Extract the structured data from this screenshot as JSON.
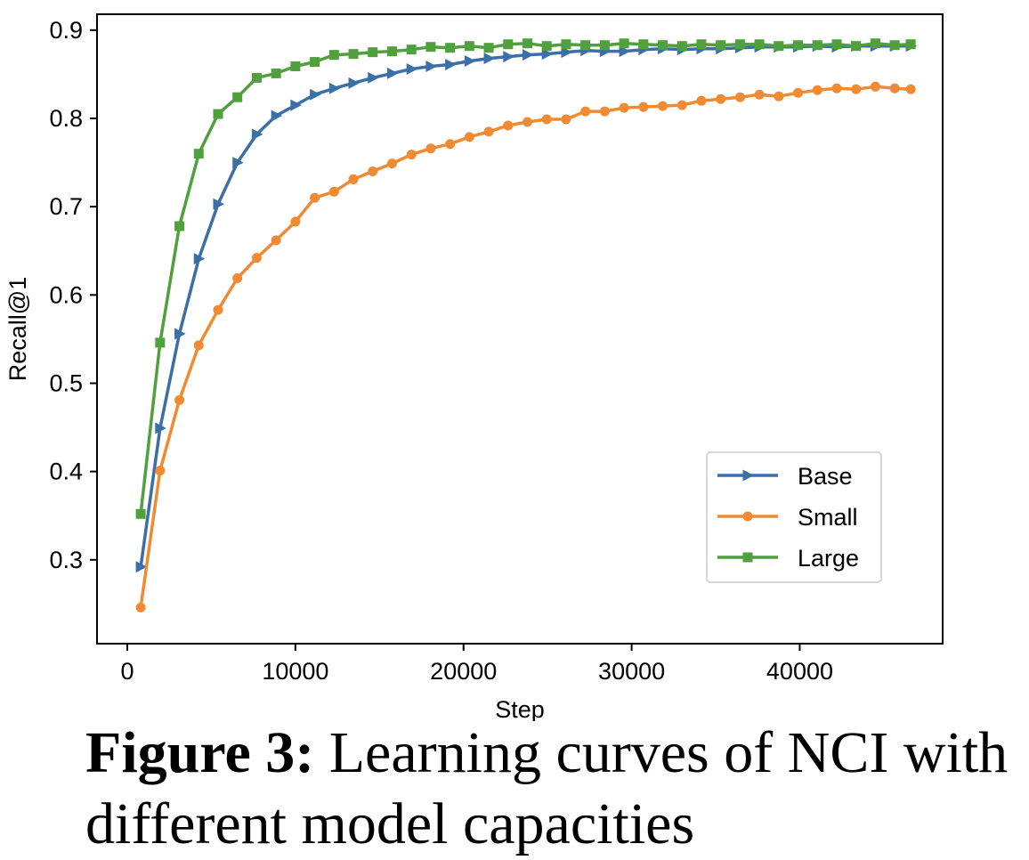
{
  "chart_data": {
    "type": "line",
    "xlabel": "Step",
    "ylabel": "Recall@1",
    "xlim": [
      -1800,
      48500
    ],
    "ylim": [
      0.205,
      0.918
    ],
    "xticks": [
      0,
      10000,
      20000,
      30000,
      40000
    ],
    "xtick_labels": [
      "0",
      "10000",
      "20000",
      "30000",
      "40000"
    ],
    "yticks": [
      0.3,
      0.4,
      0.5,
      0.6,
      0.7,
      0.8,
      0.9
    ],
    "ytick_labels": [
      "0.3",
      "0.4",
      "0.5",
      "0.6",
      "0.7",
      "0.8",
      "0.9"
    ],
    "grid": false,
    "legend_position": "lower-right",
    "x": [
      800,
      1950,
      3100,
      4250,
      5400,
      6550,
      7700,
      8850,
      10000,
      11150,
      12300,
      13450,
      14600,
      15750,
      16900,
      18050,
      19200,
      20350,
      21500,
      22650,
      23800,
      24950,
      26100,
      27250,
      28400,
      29550,
      30700,
      31850,
      33000,
      34150,
      35300,
      36450,
      37600,
      38750,
      39900,
      41050,
      42200,
      43350,
      44500,
      45650,
      46600
    ],
    "series": [
      {
        "name": "Base",
        "color": "#3a6fa8",
        "marker": "triangle-right",
        "values": [
          0.292,
          0.449,
          0.556,
          0.641,
          0.703,
          0.75,
          0.782,
          0.803,
          0.815,
          0.827,
          0.834,
          0.84,
          0.846,
          0.851,
          0.856,
          0.859,
          0.861,
          0.865,
          0.868,
          0.87,
          0.872,
          0.873,
          0.875,
          0.877,
          0.876,
          0.876,
          0.878,
          0.879,
          0.878,
          0.879,
          0.879,
          0.88,
          0.881,
          0.881,
          0.881,
          0.882,
          0.881,
          0.882,
          0.882,
          0.882,
          0.882
        ]
      },
      {
        "name": "Small",
        "color": "#f08a33",
        "marker": "circle",
        "values": [
          0.246,
          0.401,
          0.481,
          0.543,
          0.583,
          0.619,
          0.642,
          0.662,
          0.683,
          0.71,
          0.717,
          0.731,
          0.74,
          0.749,
          0.759,
          0.766,
          0.771,
          0.779,
          0.785,
          0.792,
          0.796,
          0.799,
          0.799,
          0.808,
          0.808,
          0.812,
          0.813,
          0.814,
          0.815,
          0.82,
          0.822,
          0.824,
          0.827,
          0.825,
          0.829,
          0.832,
          0.834,
          0.833,
          0.836,
          0.834,
          0.833
        ]
      },
      {
        "name": "Large",
        "color": "#50a03e",
        "marker": "square",
        "values": [
          0.352,
          0.546,
          0.678,
          0.76,
          0.805,
          0.824,
          0.846,
          0.851,
          0.859,
          0.864,
          0.872,
          0.873,
          0.875,
          0.876,
          0.878,
          0.881,
          0.88,
          0.882,
          0.88,
          0.884,
          0.885,
          0.882,
          0.884,
          0.883,
          0.883,
          0.885,
          0.884,
          0.883,
          0.882,
          0.884,
          0.883,
          0.884,
          0.884,
          0.882,
          0.883,
          0.883,
          0.884,
          0.882,
          0.885,
          0.883,
          0.884
        ]
      }
    ]
  },
  "caption": {
    "label": "Figure 3:",
    "text": " Learning curves of NCI with different model capacities"
  }
}
